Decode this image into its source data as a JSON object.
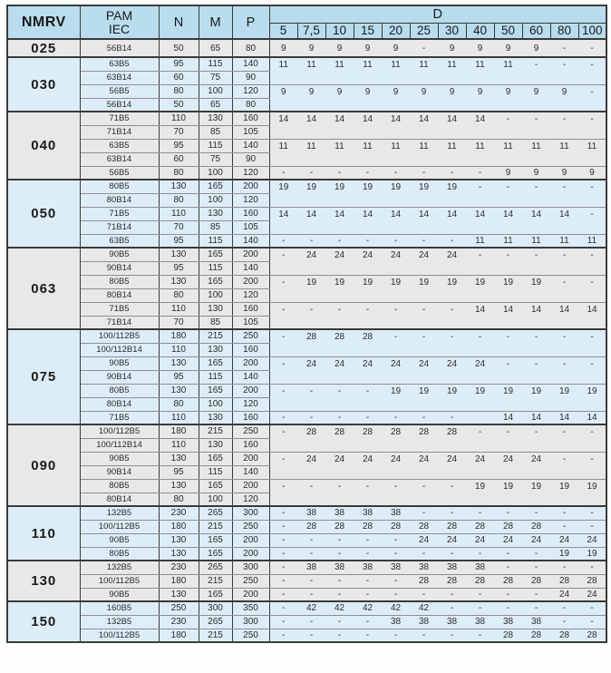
{
  "colors": {
    "header_bg": "#b9dcee",
    "section_blue": "#ddedf8",
    "section_gray": "#e8e8e8",
    "border_dark": "#3a3a3a",
    "border_light": "#8f8f8f"
  },
  "table": {
    "header": {
      "nmrv": "NMRV",
      "pam_line1": "PAM",
      "pam_line2": "IEC",
      "n": "N",
      "m": "M",
      "p": "P",
      "d": "D",
      "d_sizes": [
        "5",
        "7,5",
        "10",
        "15",
        "20",
        "25",
        "30",
        "40",
        "50",
        "60",
        "80",
        "100"
      ]
    },
    "sections": [
      {
        "nmrv": "025",
        "bg": "gray",
        "tall": true,
        "rows": [
          {
            "pam": "56B14",
            "n": "50",
            "m": "65",
            "p": "80",
            "d_span": 1,
            "d": [
              "9",
              "9",
              "9",
              "9",
              "9",
              "-",
              "9",
              "9",
              "9",
              "9",
              "-",
              "-"
            ]
          }
        ]
      },
      {
        "nmrv": "030",
        "bg": "blue",
        "rows": [
          {
            "pam": "63B5",
            "n": "95",
            "m": "115",
            "p": "140",
            "d_span": 2,
            "d": [
              "11",
              "11",
              "11",
              "11",
              "11",
              "11",
              "11",
              "11",
              "11",
              "-",
              "-",
              "-"
            ]
          },
          {
            "pam": "63B14",
            "n": "60",
            "m": "75",
            "p": "90"
          },
          {
            "pam": "56B5",
            "n": "80",
            "m": "100",
            "p": "120",
            "d_span": 2,
            "d": [
              "9",
              "9",
              "9",
              "9",
              "9",
              "9",
              "9",
              "9",
              "9",
              "9",
              "9",
              "-"
            ]
          },
          {
            "pam": "56B14",
            "n": "50",
            "m": "65",
            "p": "80"
          }
        ]
      },
      {
        "nmrv": "040",
        "bg": "gray",
        "rows": [
          {
            "pam": "71B5",
            "n": "110",
            "m": "130",
            "p": "160",
            "d_span": 2,
            "d": [
              "14",
              "14",
              "14",
              "14",
              "14",
              "14",
              "14",
              "14",
              "-",
              "-",
              "-",
              "-"
            ]
          },
          {
            "pam": "71B14",
            "n": "70",
            "m": "85",
            "p": "105"
          },
          {
            "pam": "63B5",
            "n": "95",
            "m": "115",
            "p": "140",
            "d_span": 2,
            "d": [
              "11",
              "11",
              "11",
              "11",
              "11",
              "11",
              "11",
              "11",
              "11",
              "11",
              "11",
              "11"
            ]
          },
          {
            "pam": "63B14",
            "n": "60",
            "m": "75",
            "p": "90"
          },
          {
            "pam": "56B5",
            "n": "80",
            "m": "100",
            "p": "120",
            "d_span": 1,
            "d": [
              "-",
              "-",
              "-",
              "-",
              "-",
              "-",
              "-",
              "-",
              "9",
              "9",
              "9",
              "9"
            ]
          }
        ]
      },
      {
        "nmrv": "050",
        "bg": "blue",
        "rows": [
          {
            "pam": "80B5",
            "n": "130",
            "m": "165",
            "p": "200",
            "d_span": 2,
            "d": [
              "19",
              "19",
              "19",
              "19",
              "19",
              "19",
              "19",
              "-",
              "-",
              "-",
              "-",
              "-"
            ]
          },
          {
            "pam": "80B14",
            "n": "80",
            "m": "100",
            "p": "120"
          },
          {
            "pam": "71B5",
            "n": "110",
            "m": "130",
            "p": "160",
            "d_span": 2,
            "d": [
              "14",
              "14",
              "14",
              "14",
              "14",
              "14",
              "14",
              "14",
              "14",
              "14",
              "14",
              "-"
            ]
          },
          {
            "pam": "71B14",
            "n": "70",
            "m": "85",
            "p": "105"
          },
          {
            "pam": "63B5",
            "n": "95",
            "m": "115",
            "p": "140",
            "d_span": 1,
            "d": [
              "-",
              "-",
              "-",
              "-",
              "-",
              "-",
              "-",
              "11",
              "11",
              "11",
              "11",
              "11"
            ]
          }
        ]
      },
      {
        "nmrv": "063",
        "bg": "gray",
        "rows": [
          {
            "pam": "90B5",
            "n": "130",
            "m": "165",
            "p": "200",
            "d_span": 2,
            "d": [
              "-",
              "24",
              "24",
              "24",
              "24",
              "24",
              "24",
              "-",
              "-",
              "-",
              "-",
              "-"
            ]
          },
          {
            "pam": "90B14",
            "n": "95",
            "m": "115",
            "p": "140"
          },
          {
            "pam": "80B5",
            "n": "130",
            "m": "165",
            "p": "200",
            "d_span": 2,
            "d": [
              "-",
              "19",
              "19",
              "19",
              "19",
              "19",
              "19",
              "19",
              "19",
              "19",
              "-",
              "-"
            ]
          },
          {
            "pam": "80B14",
            "n": "80",
            "m": "100",
            "p": "120"
          },
          {
            "pam": "71B5",
            "n": "110",
            "m": "130",
            "p": "160",
            "d_span": 2,
            "d": [
              "-",
              "-",
              "-",
              "-",
              "-",
              "-",
              "-",
              "14",
              "14",
              "14",
              "14",
              "14"
            ]
          },
          {
            "pam": "71B14",
            "n": "70",
            "m": "85",
            "p": "105"
          }
        ]
      },
      {
        "nmrv": "075",
        "bg": "blue",
        "rows": [
          {
            "pam": "100/112B5",
            "n": "180",
            "m": "215",
            "p": "250",
            "d_span": 2,
            "d": [
              "-",
              "28",
              "28",
              "28",
              "-",
              "-",
              "-",
              "-",
              "-",
              "-",
              "-",
              "-"
            ]
          },
          {
            "pam": "100/112B14",
            "n": "110",
            "m": "130",
            "p": "160"
          },
          {
            "pam": "90B5",
            "n": "130",
            "m": "165",
            "p": "200",
            "d_span": 2,
            "d": [
              "-",
              "24",
              "24",
              "24",
              "24",
              "24",
              "24",
              "24",
              "-",
              "-",
              "-",
              "-"
            ]
          },
          {
            "pam": "90B14",
            "n": "95",
            "m": "115",
            "p": "140"
          },
          {
            "pam": "80B5",
            "n": "130",
            "m": "165",
            "p": "200",
            "d_span": 2,
            "d": [
              "-",
              "-",
              "-",
              "-",
              "19",
              "19",
              "19",
              "19",
              "19",
              "19",
              "19",
              "19"
            ]
          },
          {
            "pam": "80B14",
            "n": "80",
            "m": "100",
            "p": "120"
          },
          {
            "pam": "71B5",
            "n": "110",
            "m": "130",
            "p": "160",
            "d_span": 1,
            "d": [
              "-",
              "-",
              "-",
              "-",
              "-",
              "-",
              "-",
              "",
              "14",
              "14",
              "14",
              "14"
            ]
          }
        ]
      },
      {
        "nmrv": "090",
        "bg": "gray",
        "rows": [
          {
            "pam": "100/112B5",
            "n": "180",
            "m": "215",
            "p": "250",
            "d_span": 2,
            "d": [
              "-",
              "28",
              "28",
              "28",
              "28",
              "28",
              "28",
              "-",
              "-",
              "-",
              "-",
              "-"
            ]
          },
          {
            "pam": "100/112B14",
            "n": "110",
            "m": "130",
            "p": "160"
          },
          {
            "pam": "90B5",
            "n": "130",
            "m": "165",
            "p": "200",
            "d_span": 2,
            "d": [
              "-",
              "24",
              "24",
              "24",
              "24",
              "24",
              "24",
              "24",
              "24",
              "24",
              "-",
              "-"
            ]
          },
          {
            "pam": "90B14",
            "n": "95",
            "m": "115",
            "p": "140"
          },
          {
            "pam": "80B5",
            "n": "130",
            "m": "165",
            "p": "200",
            "d_span": 2,
            "d": [
              "-",
              "-",
              "-",
              "-",
              "-",
              "-",
              "-",
              "19",
              "19",
              "19",
              "19",
              "19"
            ]
          },
          {
            "pam": "80B14",
            "n": "80",
            "m": "100",
            "p": "120"
          }
        ]
      },
      {
        "nmrv": "110",
        "bg": "blue",
        "rows": [
          {
            "pam": "132B5",
            "n": "230",
            "m": "265",
            "p": "300",
            "d_span": 1,
            "d": [
              "-",
              "38",
              "38",
              "38",
              "38",
              "-",
              "-",
              "-",
              "-",
              "-",
              "-",
              "-"
            ]
          },
          {
            "pam": "100/112B5",
            "n": "180",
            "m": "215",
            "p": "250",
            "d_span": 1,
            "d": [
              "-",
              "28",
              "28",
              "28",
              "28",
              "28",
              "28",
              "28",
              "28",
              "28",
              "-",
              "-"
            ]
          },
          {
            "pam": "90B5",
            "n": "130",
            "m": "165",
            "p": "200",
            "d_span": 1,
            "d": [
              "-",
              "-",
              "-",
              "-",
              "-",
              "24",
              "24",
              "24",
              "24",
              "24",
              "24",
              "24"
            ]
          },
          {
            "pam": "80B5",
            "n": "130",
            "m": "165",
            "p": "200",
            "d_span": 1,
            "d": [
              "-",
              "-",
              "-",
              "-",
              "-",
              "-",
              "-",
              "-",
              "-",
              "-",
              "19",
              "19"
            ]
          }
        ]
      },
      {
        "nmrv": "130",
        "bg": "gray",
        "rows": [
          {
            "pam": "132B5",
            "n": "230",
            "m": "265",
            "p": "300",
            "d_span": 1,
            "d": [
              "-",
              "38",
              "38",
              "38",
              "38",
              "38",
              "38",
              "38",
              "-",
              "-",
              "-",
              "-"
            ]
          },
          {
            "pam": "100/112B5",
            "n": "180",
            "m": "215",
            "p": "250",
            "d_span": 1,
            "d": [
              "-",
              "-",
              "-",
              "-",
              "-",
              "28",
              "28",
              "28",
              "28",
              "28",
              "28",
              "28"
            ]
          },
          {
            "pam": "90B5",
            "n": "130",
            "m": "165",
            "p": "200",
            "d_span": 1,
            "d": [
              "-",
              "-",
              "-",
              "-",
              "-",
              "-",
              "-",
              "-",
              "-",
              "-",
              "24",
              "24"
            ]
          }
        ]
      },
      {
        "nmrv": "150",
        "bg": "blue",
        "rows": [
          {
            "pam": "160B5",
            "n": "250",
            "m": "300",
            "p": "350",
            "d_span": 1,
            "d": [
              "-",
              "42",
              "42",
              "42",
              "42",
              "42",
              "-",
              "-",
              "-",
              "-",
              "-",
              "-"
            ]
          },
          {
            "pam": "132B5",
            "n": "230",
            "m": "265",
            "p": "300",
            "d_span": 1,
            "d": [
              "-",
              "-",
              "-",
              "-",
              "38",
              "38",
              "38",
              "38",
              "38",
              "38",
              "-",
              "-"
            ]
          },
          {
            "pam": "100/112B5",
            "n": "180",
            "m": "215",
            "p": "250",
            "d_span": 1,
            "d": [
              "-",
              "-",
              "-",
              "-",
              "-",
              "-",
              "-",
              "-",
              "28",
              "28",
              "28",
              "28"
            ]
          }
        ]
      }
    ]
  }
}
